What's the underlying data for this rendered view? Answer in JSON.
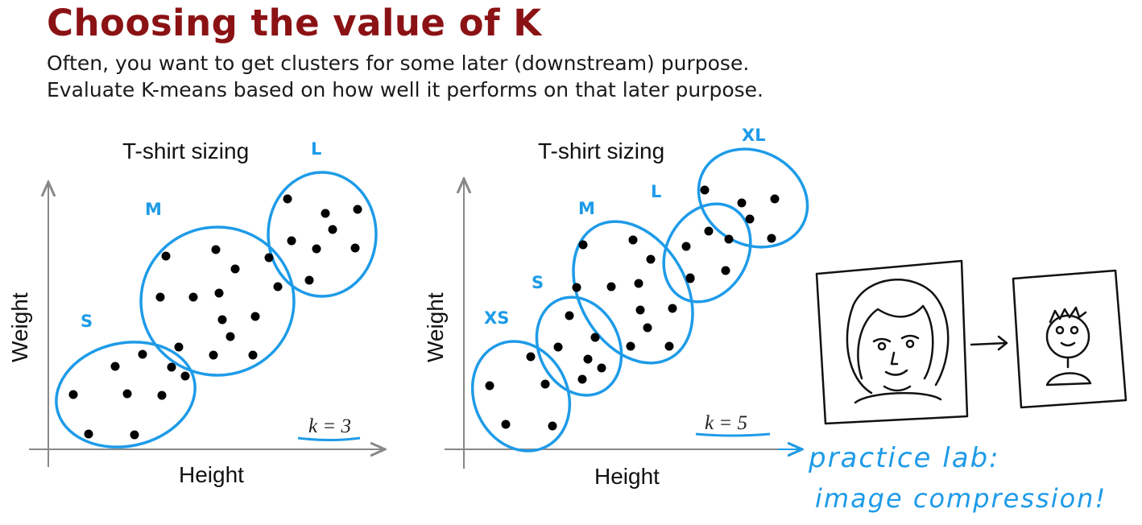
{
  "slide": {
    "title": "Choosing the value of K",
    "subtitle_lines": [
      "Often, you want to get clusters for some later (downstream) purpose.",
      "Evaluate K-means based on how well it performs on that later purpose."
    ],
    "accent_color": "#1e9be8",
    "title_color": "#8b1214"
  },
  "chart_data": [
    {
      "type": "scatter",
      "title": "T-shirt sizing",
      "xlabel": "Height",
      "ylabel": "Weight",
      "annotation": "k = 3",
      "clusters": [
        {
          "label": "S",
          "points": [
            [
              91,
              490
            ],
            [
              110,
              539
            ],
            [
              143,
              455
            ],
            [
              158,
              489
            ],
            [
              167,
              540
            ],
            [
              177,
              440
            ],
            [
              201,
              491
            ],
            [
              213,
              456
            ],
            [
              230,
              467
            ]
          ]
        },
        {
          "label": "M",
          "points": [
            [
              206,
              318
            ],
            [
              268,
              310
            ],
            [
              292,
              334
            ],
            [
              199,
              369
            ],
            [
              240,
              369
            ],
            [
              272,
              364
            ],
            [
              345,
              356
            ],
            [
              276,
              397
            ],
            [
              317,
              393
            ],
            [
              286,
              418
            ],
            [
              222,
              431
            ],
            [
              265,
              441
            ],
            [
              314,
              441
            ],
            [
              334,
              320
            ]
          ]
        },
        {
          "label": "L",
          "points": [
            [
              357,
              247
            ],
            [
              404,
              265
            ],
            [
              444,
              260
            ],
            [
              413,
              285
            ],
            [
              362,
              299
            ],
            [
              393,
              309
            ],
            [
              441,
              308
            ],
            [
              384,
              348
            ]
          ]
        }
      ]
    },
    {
      "type": "scatter",
      "title": "T-shirt sizing",
      "xlabel": "Height",
      "ylabel": "Weight",
      "annotation": "k = 5",
      "clusters": [
        {
          "label": "XS",
          "points": [
            [
              608,
              479
            ],
            [
              628,
              527
            ],
            [
              659,
              443
            ],
            [
              677,
              477
            ],
            [
              686,
              529
            ]
          ]
        },
        {
          "label": "S",
          "points": [
            [
              707,
              392
            ],
            [
              693,
              431
            ],
            [
              739,
              419
            ],
            [
              730,
              446
            ],
            [
              747,
              457
            ],
            [
              723,
              471
            ]
          ]
        },
        {
          "label": "M",
          "points": [
            [
              724,
              304
            ],
            [
              786,
              298
            ],
            [
              808,
              322
            ],
            [
              716,
              357
            ],
            [
              759,
              356
            ],
            [
              793,
              352
            ],
            [
              835,
              383
            ],
            [
              795,
              385
            ],
            [
              804,
              407
            ],
            [
              783,
              430
            ],
            [
              831,
              430
            ],
            [
              857,
              346
            ]
          ]
        },
        {
          "label": "L",
          "points": [
            [
              852,
              306
            ],
            [
              880,
              287
            ],
            [
              905,
              297
            ],
            [
              901,
              336
            ],
            [
              857,
              345
            ]
          ]
        },
        {
          "label": "XL",
          "points": [
            [
              875,
              236
            ],
            [
              921,
              252
            ],
            [
              962,
              247
            ],
            [
              931,
              272
            ],
            [
              958,
              296
            ]
          ]
        }
      ]
    }
  ],
  "note": {
    "handwritten_lines": [
      "practice lab:",
      "image compression!"
    ]
  }
}
